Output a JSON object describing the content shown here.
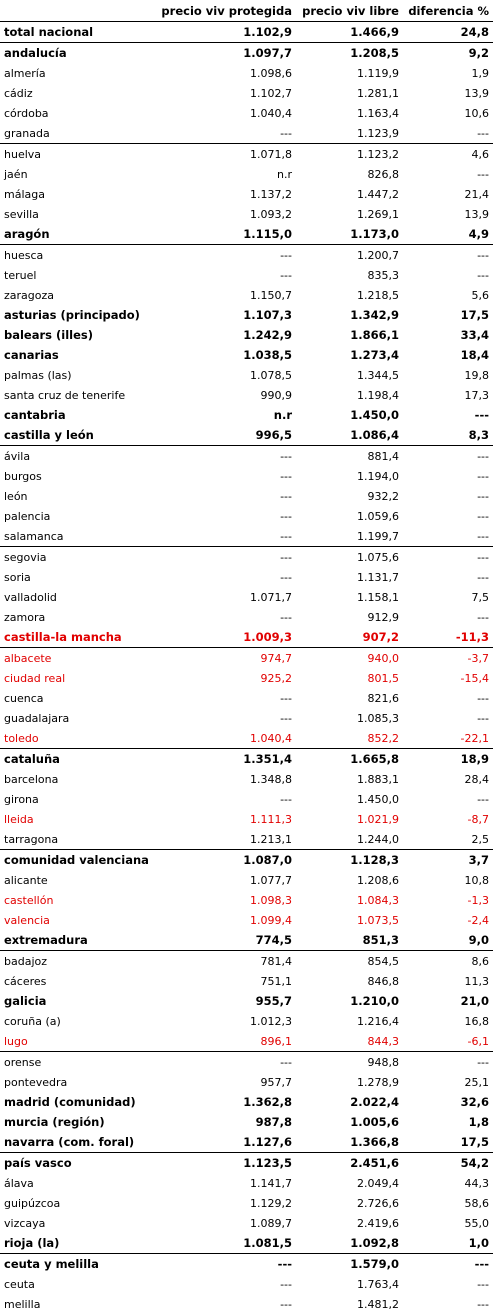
{
  "headers": [
    "",
    "precio viv protegida",
    "precio viv libre",
    "diferencia %"
  ],
  "accent_red": "#e10000",
  "rows": [
    {
      "name": "total nacional",
      "prot": "1.102,9",
      "libre": "1.466,9",
      "dif": "24,8",
      "bold": true,
      "red": false,
      "sep": false
    },
    {
      "name": "andalucía",
      "prot": "1.097,7",
      "libre": "1.208,5",
      "dif": "9,2",
      "bold": true,
      "red": false,
      "sep": true
    },
    {
      "name": "almería",
      "prot": "1.098,6",
      "libre": "1.119,9",
      "dif": "1,9",
      "bold": false,
      "red": false,
      "sep": false
    },
    {
      "name": "cádiz",
      "prot": "1.102,7",
      "libre": "1.281,1",
      "dif": "13,9",
      "bold": false,
      "red": false,
      "sep": false
    },
    {
      "name": "córdoba",
      "prot": "1.040,4",
      "libre": "1.163,4",
      "dif": "10,6",
      "bold": false,
      "red": false,
      "sep": false
    },
    {
      "name": "granada",
      "prot": "---",
      "libre": "1.123,9",
      "dif": "---",
      "bold": false,
      "red": false,
      "sep": false
    },
    {
      "name": "huelva",
      "prot": "1.071,8",
      "libre": "1.123,2",
      "dif": "4,6",
      "bold": false,
      "red": false,
      "sep": true
    },
    {
      "name": "jaén",
      "prot": "n.r",
      "libre": "826,8",
      "dif": "---",
      "bold": false,
      "red": false,
      "sep": false
    },
    {
      "name": "málaga",
      "prot": "1.137,2",
      "libre": "1.447,2",
      "dif": "21,4",
      "bold": false,
      "red": false,
      "sep": false
    },
    {
      "name": "sevilla",
      "prot": "1.093,2",
      "libre": "1.269,1",
      "dif": "13,9",
      "bold": false,
      "red": false,
      "sep": false
    },
    {
      "name": "aragón",
      "prot": "1.115,0",
      "libre": "1.173,0",
      "dif": "4,9",
      "bold": true,
      "red": false,
      "sep": false
    },
    {
      "name": "huesca",
      "prot": "---",
      "libre": "1.200,7",
      "dif": "---",
      "bold": false,
      "red": false,
      "sep": true
    },
    {
      "name": "teruel",
      "prot": "---",
      "libre": "835,3",
      "dif": "---",
      "bold": false,
      "red": false,
      "sep": false
    },
    {
      "name": "zaragoza",
      "prot": "1.150,7",
      "libre": "1.218,5",
      "dif": "5,6",
      "bold": false,
      "red": false,
      "sep": false
    },
    {
      "name": "asturias (principado)",
      "prot": "1.107,3",
      "libre": "1.342,9",
      "dif": "17,5",
      "bold": true,
      "red": false,
      "sep": false
    },
    {
      "name": "balears (illes)",
      "prot": "1.242,9",
      "libre": "1.866,1",
      "dif": "33,4",
      "bold": true,
      "red": false,
      "sep": false
    },
    {
      "name": "canarias",
      "prot": "1.038,5",
      "libre": "1.273,4",
      "dif": "18,4",
      "bold": true,
      "red": false,
      "sep": false
    },
    {
      "name": "palmas (las)",
      "prot": "1.078,5",
      "libre": "1.344,5",
      "dif": "19,8",
      "bold": false,
      "red": false,
      "sep": false
    },
    {
      "name": "santa cruz de tenerife",
      "prot": "990,9",
      "libre": "1.198,4",
      "dif": "17,3",
      "bold": false,
      "red": false,
      "sep": false
    },
    {
      "name": "cantabria",
      "prot": "n.r",
      "libre": "1.450,0",
      "dif": "---",
      "bold": true,
      "red": false,
      "sep": false
    },
    {
      "name": "castilla y león",
      "prot": "996,5",
      "libre": "1.086,4",
      "dif": "8,3",
      "bold": true,
      "red": false,
      "sep": false
    },
    {
      "name": "ávila",
      "prot": "---",
      "libre": "881,4",
      "dif": "---",
      "bold": false,
      "red": false,
      "sep": true
    },
    {
      "name": "burgos",
      "prot": "---",
      "libre": "1.194,0",
      "dif": "---",
      "bold": false,
      "red": false,
      "sep": false
    },
    {
      "name": "león",
      "prot": "---",
      "libre": "932,2",
      "dif": "---",
      "bold": false,
      "red": false,
      "sep": false
    },
    {
      "name": "palencia",
      "prot": "---",
      "libre": "1.059,6",
      "dif": "---",
      "bold": false,
      "red": false,
      "sep": false
    },
    {
      "name": "salamanca",
      "prot": "---",
      "libre": "1.199,7",
      "dif": "---",
      "bold": false,
      "red": false,
      "sep": false
    },
    {
      "name": "segovia",
      "prot": "---",
      "libre": "1.075,6",
      "dif": "---",
      "bold": false,
      "red": false,
      "sep": true
    },
    {
      "name": "soria",
      "prot": "---",
      "libre": "1.131,7",
      "dif": "---",
      "bold": false,
      "red": false,
      "sep": false
    },
    {
      "name": "valladolid",
      "prot": "1.071,7",
      "libre": "1.158,1",
      "dif": "7,5",
      "bold": false,
      "red": false,
      "sep": false
    },
    {
      "name": "zamora",
      "prot": "---",
      "libre": "912,9",
      "dif": "---",
      "bold": false,
      "red": false,
      "sep": false
    },
    {
      "name": "castilla-la mancha",
      "prot": "1.009,3",
      "libre": "907,2",
      "dif": "-11,3",
      "bold": true,
      "red": true,
      "sep": false
    },
    {
      "name": "albacete",
      "prot": "974,7",
      "libre": "940,0",
      "dif": "-3,7",
      "bold": false,
      "red": true,
      "sep": true
    },
    {
      "name": "ciudad real",
      "prot": "925,2",
      "libre": "801,5",
      "dif": "-15,4",
      "bold": false,
      "red": true,
      "sep": false
    },
    {
      "name": "cuenca",
      "prot": "---",
      "libre": "821,6",
      "dif": "---",
      "bold": false,
      "red": false,
      "sep": false
    },
    {
      "name": "guadalajara",
      "prot": "---",
      "libre": "1.085,3",
      "dif": "---",
      "bold": false,
      "red": false,
      "sep": false
    },
    {
      "name": "toledo",
      "prot": "1.040,4",
      "libre": "852,2",
      "dif": "-22,1",
      "bold": false,
      "red": true,
      "sep": false
    },
    {
      "name": "cataluña",
      "prot": "1.351,4",
      "libre": "1.665,8",
      "dif": "18,9",
      "bold": true,
      "red": false,
      "sep": true
    },
    {
      "name": "barcelona",
      "prot": "1.348,8",
      "libre": "1.883,1",
      "dif": "28,4",
      "bold": false,
      "red": false,
      "sep": false
    },
    {
      "name": "girona",
      "prot": "---",
      "libre": "1.450,0",
      "dif": "---",
      "bold": false,
      "red": false,
      "sep": false
    },
    {
      "name": "lleida",
      "prot": "1.111,3",
      "libre": "1.021,9",
      "dif": "-8,7",
      "bold": false,
      "red": true,
      "sep": false
    },
    {
      "name": "tarragona",
      "prot": "1.213,1",
      "libre": "1.244,0",
      "dif": "2,5",
      "bold": false,
      "red": false,
      "sep": false
    },
    {
      "name": "comunidad valenciana",
      "prot": "1.087,0",
      "libre": "1.128,3",
      "dif": "3,7",
      "bold": true,
      "red": false,
      "sep": true
    },
    {
      "name": "alicante",
      "prot": "1.077,7",
      "libre": "1.208,6",
      "dif": "10,8",
      "bold": false,
      "red": false,
      "sep": false
    },
    {
      "name": "castellón",
      "prot": "1.098,3",
      "libre": "1.084,3",
      "dif": "-1,3",
      "bold": false,
      "red": true,
      "sep": false
    },
    {
      "name": "valencia",
      "prot": "1.099,4",
      "libre": "1.073,5",
      "dif": "-2,4",
      "bold": false,
      "red": true,
      "sep": false
    },
    {
      "name": "extremadura",
      "prot": "774,5",
      "libre": "851,3",
      "dif": "9,0",
      "bold": true,
      "red": false,
      "sep": false
    },
    {
      "name": "badajoz",
      "prot": "781,4",
      "libre": "854,5",
      "dif": "8,6",
      "bold": false,
      "red": false,
      "sep": true
    },
    {
      "name": "cáceres",
      "prot": "751,1",
      "libre": "846,8",
      "dif": "11,3",
      "bold": false,
      "red": false,
      "sep": false
    },
    {
      "name": "galicia",
      "prot": "955,7",
      "libre": "1.210,0",
      "dif": "21,0",
      "bold": true,
      "red": false,
      "sep": false
    },
    {
      "name": "coruña (a)",
      "prot": "1.012,3",
      "libre": "1.216,4",
      "dif": "16,8",
      "bold": false,
      "red": false,
      "sep": false
    },
    {
      "name": "lugo",
      "prot": "896,1",
      "libre": "844,3",
      "dif": "-6,1",
      "bold": false,
      "red": true,
      "sep": false
    },
    {
      "name": "orense",
      "prot": "---",
      "libre": "948,8",
      "dif": "---",
      "bold": false,
      "red": false,
      "sep": true
    },
    {
      "name": "pontevedra",
      "prot": "957,7",
      "libre": "1.278,9",
      "dif": "25,1",
      "bold": false,
      "red": false,
      "sep": false
    },
    {
      "name": "madrid (comunidad)",
      "prot": "1.362,8",
      "libre": "2.022,4",
      "dif": "32,6",
      "bold": true,
      "red": false,
      "sep": false
    },
    {
      "name": "murcia (región)",
      "prot": "987,8",
      "libre": "1.005,6",
      "dif": "1,8",
      "bold": true,
      "red": false,
      "sep": false
    },
    {
      "name": "navarra (com. foral)",
      "prot": "1.127,6",
      "libre": "1.366,8",
      "dif": "17,5",
      "bold": true,
      "red": false,
      "sep": false
    },
    {
      "name": "país vasco",
      "prot": "1.123,5",
      "libre": "2.451,6",
      "dif": "54,2",
      "bold": true,
      "red": false,
      "sep": true
    },
    {
      "name": "álava",
      "prot": "1.141,7",
      "libre": "2.049,4",
      "dif": "44,3",
      "bold": false,
      "red": false,
      "sep": false
    },
    {
      "name": "guipúzcoa",
      "prot": "1.129,2",
      "libre": "2.726,6",
      "dif": "58,6",
      "bold": false,
      "red": false,
      "sep": false
    },
    {
      "name": "vizcaya",
      "prot": "1.089,7",
      "libre": "2.419,6",
      "dif": "55,0",
      "bold": false,
      "red": false,
      "sep": false
    },
    {
      "name": "rioja (la)",
      "prot": "1.081,5",
      "libre": "1.092,8",
      "dif": "1,0",
      "bold": true,
      "red": false,
      "sep": false
    },
    {
      "name": "ceuta y melilla",
      "prot": "---",
      "libre": "1.579,0",
      "dif": "---",
      "bold": true,
      "red": false,
      "sep": true
    },
    {
      "name": "ceuta",
      "prot": "---",
      "libre": "1.763,4",
      "dif": "---",
      "bold": false,
      "red": false,
      "sep": false
    },
    {
      "name": "melilla",
      "prot": "---",
      "libre": "1.481,2",
      "dif": "---",
      "bold": false,
      "red": false,
      "sep": false
    }
  ]
}
